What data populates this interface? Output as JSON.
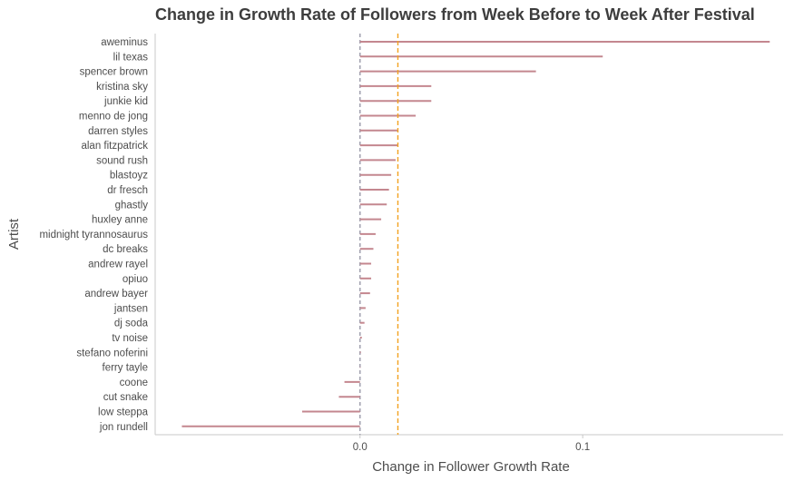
{
  "chart_data": {
    "type": "bar",
    "orientation": "horizontal",
    "title": "Change in Growth Rate of Followers from Week Before to Week After Festival",
    "xlabel": "Change in Follower Growth Rate",
    "ylabel": "Artist",
    "xlim": [
      -0.092,
      0.19
    ],
    "xticks": [
      0.0,
      0.1
    ],
    "xtick_labels": [
      "0.0",
      "0.1"
    ],
    "zero_line": 0,
    "mean_line": 0.017,
    "colors": {
      "segment": "#c4878f",
      "zero_line": "#9a9aaa",
      "mean_line": "#f2a21f",
      "axis": "#c8c8c8"
    },
    "categories": [
      "aweminus",
      "lil texas",
      "spencer brown",
      "kristina sky",
      "junkie kid",
      "menno de jong",
      "darren styles",
      "alan fitzpatrick",
      "sound rush",
      "blastoyz",
      "dr fresch",
      "ghastly",
      "huxley anne",
      "midnight tyrannosaurus",
      "dc breaks",
      "andrew rayel",
      "opiuo",
      "andrew bayer",
      "jantsen",
      "dj soda",
      "tv noise",
      "stefano noferini",
      "ferry tayle",
      "coone",
      "cut snake",
      "low steppa",
      "jon rundell"
    ],
    "values": [
      0.184,
      0.109,
      0.079,
      0.032,
      0.032,
      0.025,
      0.017,
      0.017,
      0.016,
      0.014,
      0.013,
      0.012,
      0.0095,
      0.007,
      0.006,
      0.005,
      0.005,
      0.0045,
      0.0025,
      0.002,
      0.0008,
      0.0004,
      0.0002,
      -0.007,
      -0.0095,
      -0.026,
      -0.08
    ]
  }
}
